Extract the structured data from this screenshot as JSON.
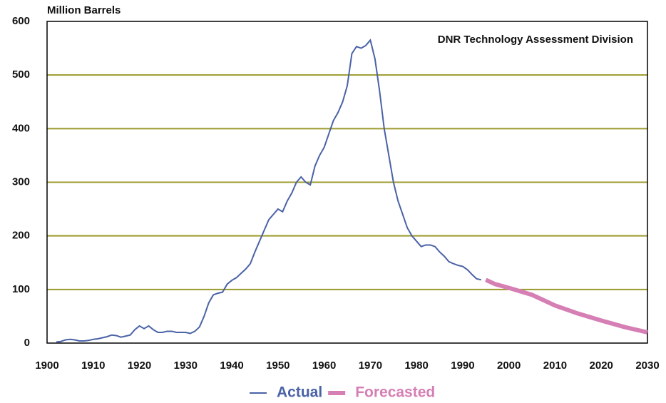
{
  "chart_data": {
    "type": "line",
    "y_label": "Million Barrels",
    "annotation": "DNR Technology Assessment Division",
    "xlim": [
      1900,
      2030
    ],
    "xticks": [
      1900,
      1910,
      1920,
      1930,
      1940,
      1950,
      1960,
      1970,
      1980,
      1990,
      2000,
      2010,
      2020,
      2030
    ],
    "ylim": [
      0,
      600
    ],
    "yticks": [
      0,
      100,
      200,
      300,
      400,
      500,
      600
    ],
    "grid": true,
    "grid_color": "#9c9a2c",
    "legend": "bottom",
    "series": [
      {
        "name": "Actual",
        "color": "#4a62a6",
        "x": [
          1902,
          1903,
          1904,
          1905,
          1906,
          1907,
          1908,
          1909,
          1910,
          1911,
          1912,
          1913,
          1914,
          1915,
          1916,
          1917,
          1918,
          1919,
          1920,
          1921,
          1922,
          1923,
          1924,
          1925,
          1926,
          1927,
          1928,
          1929,
          1930,
          1931,
          1932,
          1933,
          1934,
          1935,
          1936,
          1937,
          1938,
          1939,
          1940,
          1941,
          1942,
          1943,
          1944,
          1945,
          1946,
          1947,
          1948,
          1949,
          1950,
          1951,
          1952,
          1953,
          1954,
          1955,
          1956,
          1957,
          1958,
          1959,
          1960,
          1961,
          1962,
          1963,
          1964,
          1965,
          1966,
          1967,
          1968,
          1969,
          1970,
          1971,
          1972,
          1973,
          1974,
          1975,
          1976,
          1977,
          1978,
          1979,
          1980,
          1981,
          1982,
          1983,
          1984,
          1985,
          1986,
          1987,
          1988,
          1989,
          1990,
          1991,
          1992,
          1993,
          1994
        ],
        "values": [
          2,
          3,
          6,
          7,
          6,
          4,
          4,
          5,
          7,
          8,
          10,
          12,
          15,
          14,
          11,
          13,
          15,
          25,
          32,
          27,
          32,
          25,
          20,
          20,
          22,
          22,
          20,
          20,
          20,
          18,
          22,
          30,
          50,
          75,
          90,
          93,
          95,
          110,
          117,
          122,
          130,
          138,
          148,
          170,
          190,
          210,
          230,
          240,
          250,
          245,
          265,
          280,
          300,
          310,
          300,
          295,
          330,
          350,
          365,
          390,
          415,
          430,
          450,
          480,
          540,
          553,
          550,
          555,
          565,
          530,
          470,
          400,
          350,
          300,
          265,
          240,
          215,
          200,
          190,
          180,
          183,
          183,
          180,
          170,
          162,
          152,
          148,
          145,
          143,
          137,
          128,
          120,
          118
        ]
      },
      {
        "name": "Forecasted",
        "color": "#d57fb4",
        "x": [
          1995,
          1997,
          2000,
          2005,
          2010,
          2015,
          2020,
          2025,
          2030
        ],
        "values": [
          118,
          110,
          103,
          90,
          70,
          55,
          42,
          30,
          20
        ]
      }
    ]
  }
}
